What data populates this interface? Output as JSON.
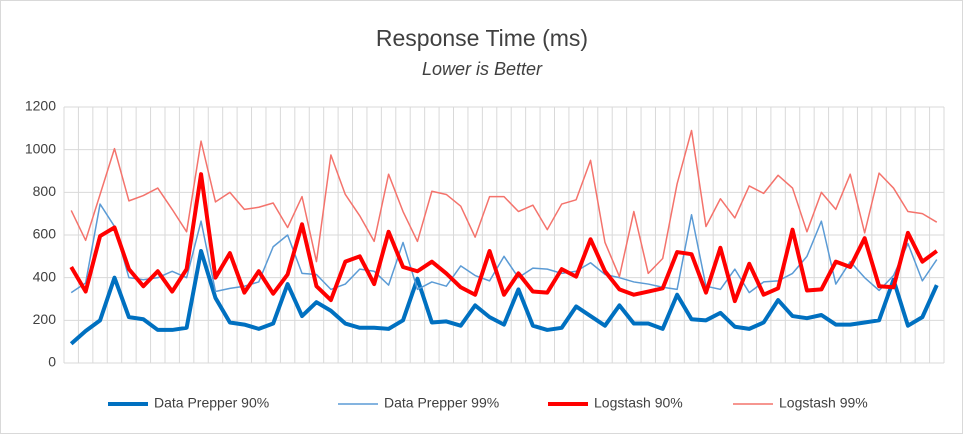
{
  "chart_data": {
    "type": "line",
    "title": "Response Time (ms)",
    "subtitle": "Lower is Better",
    "categories": [
      null,
      null,
      null,
      null,
      null,
      null,
      null,
      null,
      null,
      null,
      null,
      null,
      null,
      null,
      null,
      null,
      null,
      null,
      null,
      null,
      null,
      null,
      null,
      null,
      null,
      null,
      null,
      null,
      null,
      null,
      null,
      null,
      null,
      null,
      null,
      null,
      null,
      null,
      null,
      null,
      null,
      null,
      null,
      null,
      null,
      null,
      null,
      null,
      null,
      null,
      null,
      null,
      null,
      null,
      null,
      null,
      null,
      null,
      null,
      null,
      null
    ],
    "ylim": [
      0,
      1200
    ],
    "yticks": [
      0,
      200,
      400,
      600,
      800,
      1000,
      1200
    ],
    "grid": true,
    "legend": "bottom",
    "series": [
      {
        "name": "Data Prepper 90%",
        "color": "#0070c0",
        "line_width": 4,
        "values": [
          90,
          150,
          200,
          400,
          215,
          205,
          155,
          155,
          165,
          525,
          305,
          190,
          180,
          160,
          185,
          370,
          220,
          285,
          245,
          185,
          165,
          165,
          160,
          200,
          395,
          190,
          195,
          175,
          270,
          215,
          180,
          345,
          175,
          155,
          165,
          265,
          220,
          175,
          270,
          185,
          185,
          160,
          320,
          205,
          200,
          235,
          170,
          160,
          190,
          295,
          220,
          210,
          225,
          180,
          180,
          190,
          200,
          390,
          175,
          215,
          365
        ]
      },
      {
        "name": "Data Prepper 99%",
        "color": "#5b9bd5",
        "line_width": 1.5,
        "values": [
          330,
          375,
          745,
          640,
          400,
          390,
          400,
          430,
          400,
          665,
          335,
          350,
          360,
          380,
          545,
          600,
          420,
          415,
          345,
          370,
          440,
          430,
          365,
          565,
          345,
          380,
          360,
          455,
          410,
          385,
          500,
          400,
          445,
          440,
          420,
          430,
          470,
          415,
          400,
          380,
          370,
          355,
          345,
          695,
          360,
          345,
          440,
          330,
          380,
          385,
          420,
          500,
          665,
          370,
          475,
          400,
          340,
          410,
          560,
          385,
          485
        ]
      },
      {
        "name": "Logstash 90%",
        "color": "#ff0000",
        "line_width": 4,
        "values": [
          450,
          335,
          595,
          635,
          440,
          360,
          430,
          335,
          440,
          885,
          400,
          515,
          330,
          430,
          325,
          415,
          650,
          360,
          295,
          475,
          500,
          370,
          615,
          450,
          430,
          475,
          420,
          355,
          320,
          525,
          320,
          420,
          335,
          330,
          440,
          405,
          580,
          430,
          345,
          320,
          335,
          350,
          520,
          510,
          330,
          540,
          290,
          465,
          320,
          350,
          625,
          340,
          345,
          475,
          450,
          585,
          360,
          355,
          610,
          475,
          525
        ]
      },
      {
        "name": "Logstash 99%",
        "color": "#f4736c",
        "line_width": 1.5,
        "values": [
          715,
          575,
          790,
          1005,
          760,
          785,
          820,
          720,
          615,
          1040,
          755,
          800,
          720,
          730,
          750,
          635,
          780,
          475,
          975,
          790,
          690,
          570,
          885,
          710,
          570,
          805,
          790,
          735,
          590,
          780,
          780,
          710,
          740,
          625,
          745,
          765,
          950,
          565,
          405,
          710,
          420,
          490,
          840,
          1090,
          640,
          770,
          680,
          830,
          795,
          880,
          820,
          615,
          800,
          720,
          885,
          610,
          890,
          820,
          710,
          700,
          660
        ]
      }
    ]
  }
}
